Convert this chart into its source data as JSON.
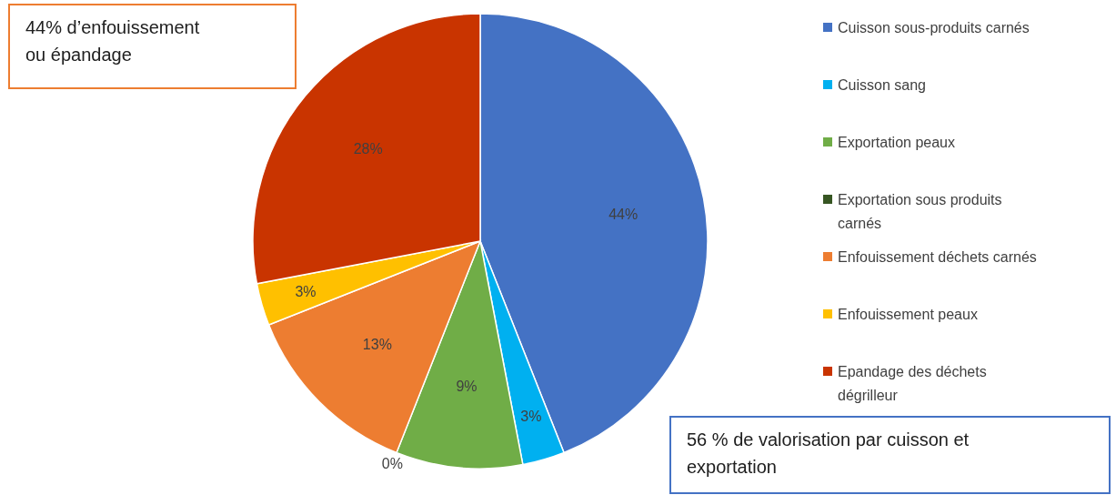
{
  "chart_data": {
    "type": "pie",
    "categories": [
      "Cuisson sous-produits carnés",
      "Cuisson sang",
      "Exportation peaux",
      "Exportation sous produits carnés",
      "Enfouissement déchets carnés",
      "Enfouissement peaux",
      "Epandage des déchets dégrilleur"
    ],
    "values": [
      44,
      3,
      9,
      0,
      13,
      3,
      28
    ],
    "colors": [
      "#4472c4",
      "#00b0f0",
      "#70ad47",
      "#375623",
      "#ed7d31",
      "#ffc000",
      "#c93400"
    ],
    "value_labels": [
      "44%",
      "3%",
      "9%",
      "0%",
      "13%",
      "3%",
      "28%"
    ],
    "legend": "right",
    "annotations": [
      "44% d’enfouissement ou épandage",
      "56 % de valorisation par cuisson et exportation"
    ]
  }
}
